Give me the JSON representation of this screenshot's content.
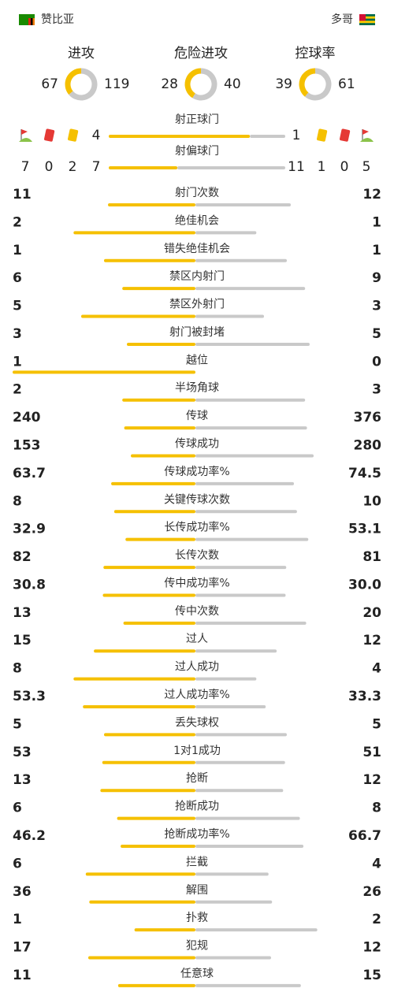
{
  "header": {
    "home": "赞比亚",
    "away": "多哥"
  },
  "summary": [
    {
      "label": "进攻",
      "home": 67,
      "away": 119
    },
    {
      "label": "危险进攻",
      "home": 28,
      "away": 40
    },
    {
      "label": "控球率",
      "home": 39,
      "away": 61
    }
  ],
  "shots": [
    {
      "label": "射正球门",
      "home": 4,
      "away": 1
    },
    {
      "label": "射偏球门",
      "home": 7,
      "away": 11
    }
  ],
  "home_events": {
    "corners": 7,
    "red_cards": 0,
    "yellow_cards": 2
  },
  "away_events": {
    "yellow_cards": 1,
    "red_cards": 0,
    "corners": 5
  },
  "stats": [
    {
      "label": "射门次数",
      "home": 11,
      "away": 12
    },
    {
      "label": "绝佳机会",
      "home": 2,
      "away": 1
    },
    {
      "label": "错失绝佳机会",
      "home": 1,
      "away": 1
    },
    {
      "label": "禁区内射门",
      "home": 6,
      "away": 9
    },
    {
      "label": "禁区外射门",
      "home": 5,
      "away": 3
    },
    {
      "label": "射门被封堵",
      "home": 3,
      "away": 5
    },
    {
      "label": "越位",
      "home": 1,
      "away": 0
    },
    {
      "label": "半场角球",
      "home": 2,
      "away": 3
    },
    {
      "label": "传球",
      "home": 240,
      "away": 376
    },
    {
      "label": "传球成功",
      "home": 153,
      "away": 280
    },
    {
      "label": "传球成功率%",
      "home": 63.7,
      "away": 74.5
    },
    {
      "label": "关键传球次数",
      "home": 8,
      "away": 10
    },
    {
      "label": "长传成功率%",
      "home": 32.9,
      "away": 53.1
    },
    {
      "label": "长传次数",
      "home": 82,
      "away": 81
    },
    {
      "label": "传中成功率%",
      "home": 30.8,
      "away": 30,
      "away_label": "30.0"
    },
    {
      "label": "传中次数",
      "home": 13,
      "away": 20
    },
    {
      "label": "过人",
      "home": 15,
      "away": 12
    },
    {
      "label": "过人成功",
      "home": 8,
      "away": 4
    },
    {
      "label": "过人成功率%",
      "home": 53.3,
      "away": 33.3
    },
    {
      "label": "丢失球权",
      "home": 5,
      "away": 5
    },
    {
      "label": "1对1成功",
      "home": 53,
      "away": 51
    },
    {
      "label": "抢断",
      "home": 13,
      "away": 12
    },
    {
      "label": "抢断成功",
      "home": 6,
      "away": 8
    },
    {
      "label": "抢断成功率%",
      "home": 46.2,
      "away": 66.7
    },
    {
      "label": "拦截",
      "home": 6,
      "away": 4
    },
    {
      "label": "解围",
      "home": 36,
      "away": 26
    },
    {
      "label": "扑救",
      "home": 1,
      "away": 2
    },
    {
      "label": "犯规",
      "home": 17,
      "away": 12
    },
    {
      "label": "任意球",
      "home": 11,
      "away": 15
    }
  ]
}
